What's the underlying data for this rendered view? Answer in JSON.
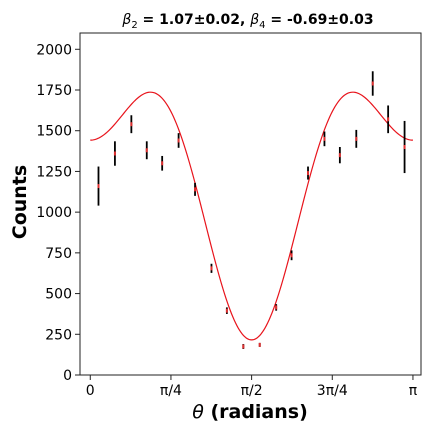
{
  "chart_data": {
    "type": "scatter",
    "title_parts": [
      "β",
      "2",
      " = 1.07±0.02, ",
      "β",
      "4",
      " = -0.69±0.03"
    ],
    "xlabel_parts": [
      "θ",
      " (radians)"
    ],
    "ylabel": "Counts",
    "xlim": [
      -0.1,
      3.22
    ],
    "ylim": [
      0,
      2100
    ],
    "x_ticks": [
      {
        "value": 0,
        "label": "0"
      },
      {
        "value": 0.7854,
        "label": "π/4"
      },
      {
        "value": 1.5708,
        "label": "π/2"
      },
      {
        "value": 2.3562,
        "label": "3π/4"
      },
      {
        "value": 3.1416,
        "label": "π"
      }
    ],
    "y_ticks": [
      {
        "value": 0,
        "label": "0"
      },
      {
        "value": 250,
        "label": "250"
      },
      {
        "value": 500,
        "label": "500"
      },
      {
        "value": 750,
        "label": "750"
      },
      {
        "value": 1000,
        "label": "1000"
      },
      {
        "value": 1250,
        "label": "1250"
      },
      {
        "value": 1500,
        "label": "1500"
      },
      {
        "value": 1750,
        "label": "1750"
      },
      {
        "value": 2000,
        "label": "2000"
      }
    ],
    "grid": false,
    "series": [
      {
        "kind": "errorbar",
        "color": "#000000",
        "marker_color": "#e03030",
        "points": [
          {
            "x": 0.08,
            "y": 1160,
            "err": 120
          },
          {
            "x": 0.24,
            "y": 1360,
            "err": 75
          },
          {
            "x": 0.4,
            "y": 1540,
            "err": 55
          },
          {
            "x": 0.55,
            "y": 1380,
            "err": 55
          },
          {
            "x": 0.7,
            "y": 1300,
            "err": 45
          },
          {
            "x": 0.86,
            "y": 1440,
            "err": 45
          },
          {
            "x": 1.02,
            "y": 1140,
            "err": 40
          },
          {
            "x": 1.18,
            "y": 655,
            "err": 28
          },
          {
            "x": 1.33,
            "y": 395,
            "err": 20
          },
          {
            "x": 1.49,
            "y": 175,
            "err": 15
          },
          {
            "x": 1.65,
            "y": 185,
            "err": 12
          },
          {
            "x": 1.81,
            "y": 415,
            "err": 20
          },
          {
            "x": 1.96,
            "y": 735,
            "err": 30
          },
          {
            "x": 2.12,
            "y": 1240,
            "err": 40
          },
          {
            "x": 2.28,
            "y": 1450,
            "err": 45
          },
          {
            "x": 2.43,
            "y": 1350,
            "err": 50
          },
          {
            "x": 2.59,
            "y": 1450,
            "err": 55
          },
          {
            "x": 2.75,
            "y": 1790,
            "err": 75
          },
          {
            "x": 2.9,
            "y": 1570,
            "err": 85
          },
          {
            "x": 3.06,
            "y": 1400,
            "err": 160
          }
        ]
      },
      {
        "kind": "fit-line",
        "color": "#e8141c",
        "A": 1045,
        "beta2": 1.07,
        "beta4": -0.69
      }
    ]
  }
}
